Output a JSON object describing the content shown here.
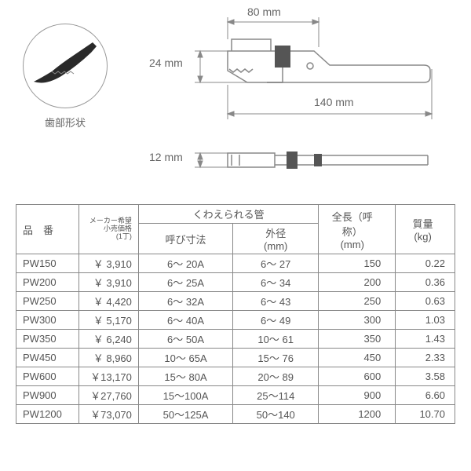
{
  "diagram": {
    "tooth_label": "歯部形状",
    "dim_80": "80 mm",
    "dim_24": "24 mm",
    "dim_140": "140 mm",
    "dim_12": "12 mm"
  },
  "table": {
    "headers": {
      "model": "品　番",
      "price_l1": "メーカー希望",
      "price_l2": "小売価格",
      "price_l3": "(1丁)",
      "pipe_group": "くわえられる管",
      "nominal": "呼び寸法",
      "od_l1": "外径",
      "od_l2": "(mm)",
      "length_l1": "全長（呼称）",
      "length_l2": "(mm)",
      "mass_l1": "質量",
      "mass_l2": "(kg)"
    },
    "rows": [
      {
        "model": "PW150",
        "price": "￥ 3,910",
        "nominal": "6～  20A",
        "od": "6～  27",
        "len": "150",
        "mass": "0.22"
      },
      {
        "model": "PW200",
        "price": "￥ 3,910",
        "nominal": "6～  25A",
        "od": "6～  34",
        "len": "200",
        "mass": "0.36"
      },
      {
        "model": "PW250",
        "price": "￥ 4,420",
        "nominal": "6～  32A",
        "od": "6～  43",
        "len": "250",
        "mass": "0.63"
      },
      {
        "model": "PW300",
        "price": "￥ 5,170",
        "nominal": "6～  40A",
        "od": "6～  49",
        "len": "300",
        "mass": "1.03"
      },
      {
        "model": "PW350",
        "price": "￥ 6,240",
        "nominal": "6～  50A",
        "od": "10～  61",
        "len": "350",
        "mass": "1.43"
      },
      {
        "model": "PW450",
        "price": "￥ 8,960",
        "nominal": "10～  65A",
        "od": "15～  76",
        "len": "450",
        "mass": "2.33"
      },
      {
        "model": "PW600",
        "price": "￥13,170",
        "nominal": "15～  80A",
        "od": "20～  89",
        "len": "600",
        "mass": "3.58"
      },
      {
        "model": "PW900",
        "price": "￥27,760",
        "nominal": "15～100A",
        "od": "25～114",
        "len": "900",
        "mass": "6.60"
      },
      {
        "model": "PW1200",
        "price": "￥73,070",
        "nominal": "50～125A",
        "od": "50～140",
        "len": "1200",
        "mass": "10.70"
      }
    ]
  }
}
